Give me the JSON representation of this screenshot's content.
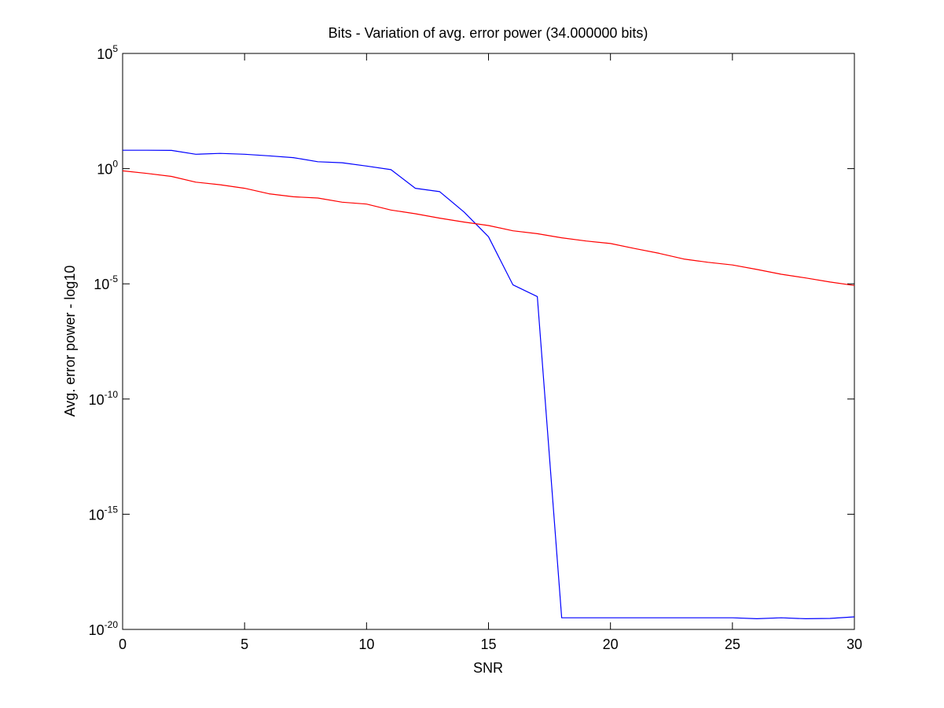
{
  "chart_data": {
    "type": "line",
    "title": "Bits - Variation of avg. error power (34.000000 bits)",
    "xlabel": "SNR",
    "ylabel": "Avg. error power - log10",
    "xlim": [
      0,
      30
    ],
    "ylim": [
      1e-20,
      100000.0
    ],
    "yscale": "log",
    "grid": false,
    "x_ticks": [
      "0",
      "5",
      "10",
      "15",
      "20",
      "25",
      "30"
    ],
    "y_ticks": [
      {
        "base": "10",
        "exp": "5",
        "value": 100000
      },
      {
        "base": "10",
        "exp": "0",
        "value": 1
      },
      {
        "base": "10",
        "exp": "-5",
        "value": 1e-05
      },
      {
        "base": "10",
        "exp": "-10",
        "value": 1e-10
      },
      {
        "base": "10",
        "exp": "-15",
        "value": 1e-15
      },
      {
        "base": "10",
        "exp": "-20",
        "value": 1e-20
      }
    ],
    "x": [
      0,
      1,
      2,
      3,
      4,
      5,
      6,
      7,
      8,
      9,
      10,
      11,
      12,
      13,
      14,
      15,
      16,
      17,
      18,
      19,
      20,
      21,
      22,
      23,
      24,
      25,
      26,
      27,
      28,
      29,
      30
    ],
    "series": [
      {
        "color": "#0000ff",
        "values": [
          6.3,
          6.3,
          6.2,
          4.2,
          4.6,
          4.2,
          3.6,
          3.0,
          2.0,
          1.8,
          1.3,
          0.9,
          0.14,
          0.1,
          0.013,
          0.0011,
          9.1e-06,
          2.8e-06,
          3.2e-20,
          3.2e-20,
          3.2e-20,
          3.2e-20,
          3.2e-20,
          3.2e-20,
          3.2e-20,
          3.2e-20,
          2.9e-20,
          3.2e-20,
          2.9e-20,
          3e-20,
          3.5e-20
        ]
      },
      {
        "color": "#ff0000",
        "values": [
          0.8,
          0.62,
          0.46,
          0.26,
          0.2,
          0.14,
          0.081,
          0.06,
          0.053,
          0.035,
          0.029,
          0.016,
          0.011,
          0.0071,
          0.0048,
          0.0034,
          0.002,
          0.0015,
          0.001,
          0.00072,
          0.00056,
          0.00034,
          0.00021,
          0.00012,
          8.6e-05,
          6.6e-05,
          4.2e-05,
          2.6e-05,
          1.8e-05,
          1.2e-05,
          8.5e-06
        ]
      }
    ]
  }
}
